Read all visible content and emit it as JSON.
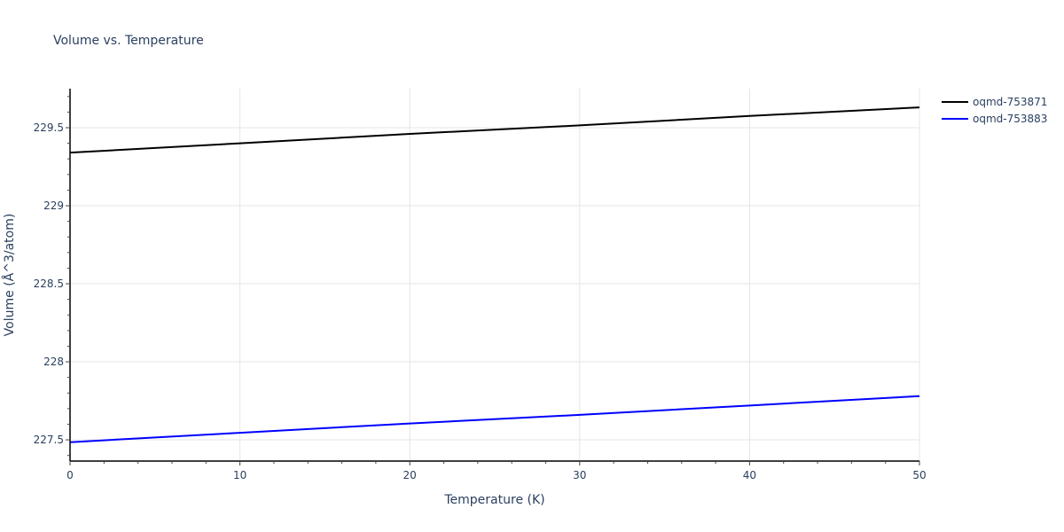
{
  "chart_data": {
    "type": "line",
    "title": "Volume vs. Temperature",
    "xlabel": "Temperature (K)",
    "ylabel": "Volume (Å^3/atom)",
    "xlim": [
      0,
      50
    ],
    "ylim": [
      227.364,
      229.75
    ],
    "x_ticks": [
      0,
      10,
      20,
      30,
      40,
      50
    ],
    "y_ticks": [
      227.5,
      228,
      228.5,
      229,
      229.5
    ],
    "y_tick_labels": [
      "227.5",
      "228",
      "228.5",
      "229",
      "229.5"
    ],
    "grid": true,
    "legend_position": "right-top",
    "series": [
      {
        "name": "oqmd-753871",
        "color": "#000000",
        "x": [
          0,
          10,
          20,
          30,
          40,
          50
        ],
        "values": [
          229.34,
          229.4,
          229.46,
          229.515,
          229.575,
          229.63
        ]
      },
      {
        "name": "oqmd-753883",
        "color": "#0000ff",
        "x": [
          0,
          10,
          20,
          30,
          40,
          50
        ],
        "values": [
          227.485,
          227.545,
          227.605,
          227.66,
          227.72,
          227.78
        ]
      }
    ]
  }
}
